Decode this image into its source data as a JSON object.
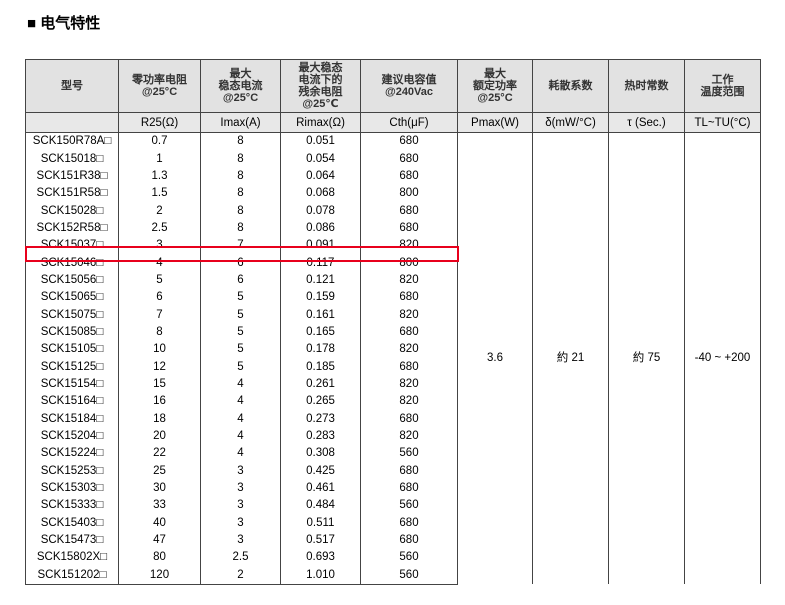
{
  "section_title": "■ 电气特性",
  "headers": [
    "型号",
    "零功率电阻\n@25°C",
    "最大\n稳态电流\n@25°C",
    "最大稳态\n电流下的\n残余电阻\n@25℃",
    "建议电容值\n@240Vac",
    "最大\n额定功率\n@25°C",
    "耗散系数",
    "热时常数",
    "工作\n温度范围"
  ],
  "units": [
    "",
    "R25(Ω)",
    "Imax(A)",
    "Rimax(Ω)",
    "Cth(μF)",
    "Pmax(W)",
    "δ(mW/°C)",
    "τ (Sec.)",
    "TL~TU(°C)"
  ],
  "rows": [
    [
      "SCK150R78A□",
      "0.7",
      "8",
      "0.051",
      "680"
    ],
    [
      "SCK15018□",
      "1",
      "8",
      "0.054",
      "680"
    ],
    [
      "SCK151R38□",
      "1.3",
      "8",
      "0.064",
      "680"
    ],
    [
      "SCK151R58□",
      "1.5",
      "8",
      "0.068",
      "800"
    ],
    [
      "SCK15028□",
      "2",
      "8",
      "0.078",
      "680"
    ],
    [
      "SCK152R58□",
      "2.5",
      "8",
      "0.086",
      "680"
    ],
    [
      "SCK15037□",
      "3",
      "7",
      "0.091",
      "820"
    ],
    [
      "SCK15046□",
      "4",
      "6",
      "0.117",
      "800"
    ],
    [
      "SCK15056□",
      "5",
      "6",
      "0.121",
      "820"
    ],
    [
      "SCK15065□",
      "6",
      "5",
      "0.159",
      "680"
    ],
    [
      "SCK15075□",
      "7",
      "5",
      "0.161",
      "820"
    ],
    [
      "SCK15085□",
      "8",
      "5",
      "0.165",
      "680"
    ],
    [
      "SCK15105□",
      "10",
      "5",
      "0.178",
      "820"
    ],
    [
      "SCK15125□",
      "12",
      "5",
      "0.185",
      "680"
    ],
    [
      "SCK15154□",
      "15",
      "4",
      "0.261",
      "820"
    ],
    [
      "SCK15164□",
      "16",
      "4",
      "0.265",
      "820"
    ],
    [
      "SCK15184□",
      "18",
      "4",
      "0.273",
      "680"
    ],
    [
      "SCK15204□",
      "20",
      "4",
      "0.283",
      "820"
    ],
    [
      "SCK15224□",
      "22",
      "4",
      "0.308",
      "560"
    ],
    [
      "SCK15253□",
      "25",
      "3",
      "0.425",
      "680"
    ],
    [
      "SCK15303□",
      "30",
      "3",
      "0.461",
      "680"
    ],
    [
      "SCK15333□",
      "33",
      "3",
      "0.484",
      "560"
    ],
    [
      "SCK15403□",
      "40",
      "3",
      "0.511",
      "680"
    ],
    [
      "SCK15473□",
      "47",
      "3",
      "0.517",
      "680"
    ],
    [
      "SCK15802X□",
      "80",
      "2.5",
      "0.693",
      "560"
    ],
    [
      "SCK151202□",
      "120",
      "2",
      "1.010",
      "560"
    ]
  ],
  "merged": [
    "3.6",
    "約 21",
    "約 75",
    "-40 ~ +200"
  ],
  "highlight": {
    "row": "SCK15037□",
    "color": "#e8001c"
  }
}
